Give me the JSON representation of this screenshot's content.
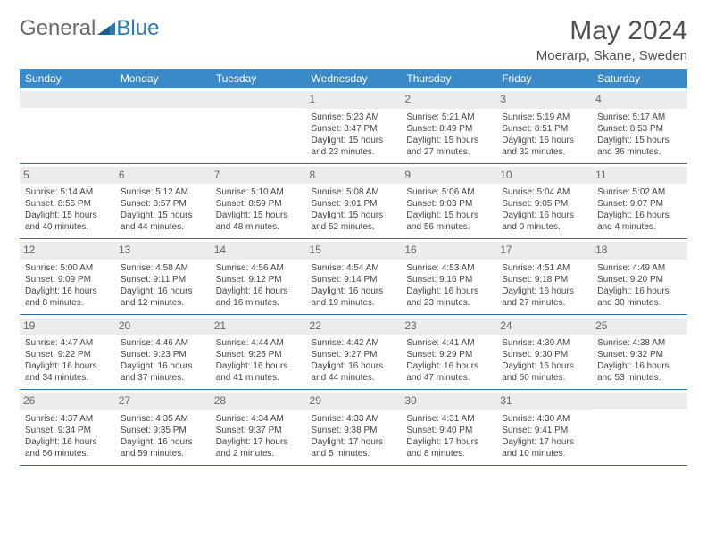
{
  "brand": {
    "part1": "General",
    "part2": "Blue"
  },
  "title": "May 2024",
  "location": "Moerarp, Skane, Sweden",
  "colors": {
    "header_bg": "#3a8ac9",
    "header_text": "#ffffff",
    "border": "#2a6ca8",
    "daynum_bg": "#ececec",
    "logo_gray": "#6b6b6b",
    "logo_blue": "#2a7ab8"
  },
  "weekdays": [
    "Sunday",
    "Monday",
    "Tuesday",
    "Wednesday",
    "Thursday",
    "Friday",
    "Saturday"
  ],
  "weeks": [
    [
      null,
      null,
      null,
      {
        "n": "1",
        "sr": "5:23 AM",
        "ss": "8:47 PM",
        "dl1": "Daylight: 15 hours",
        "dl2": "and 23 minutes."
      },
      {
        "n": "2",
        "sr": "5:21 AM",
        "ss": "8:49 PM",
        "dl1": "Daylight: 15 hours",
        "dl2": "and 27 minutes."
      },
      {
        "n": "3",
        "sr": "5:19 AM",
        "ss": "8:51 PM",
        "dl1": "Daylight: 15 hours",
        "dl2": "and 32 minutes."
      },
      {
        "n": "4",
        "sr": "5:17 AM",
        "ss": "8:53 PM",
        "dl1": "Daylight: 15 hours",
        "dl2": "and 36 minutes."
      }
    ],
    [
      {
        "n": "5",
        "sr": "5:14 AM",
        "ss": "8:55 PM",
        "dl1": "Daylight: 15 hours",
        "dl2": "and 40 minutes."
      },
      {
        "n": "6",
        "sr": "5:12 AM",
        "ss": "8:57 PM",
        "dl1": "Daylight: 15 hours",
        "dl2": "and 44 minutes."
      },
      {
        "n": "7",
        "sr": "5:10 AM",
        "ss": "8:59 PM",
        "dl1": "Daylight: 15 hours",
        "dl2": "and 48 minutes."
      },
      {
        "n": "8",
        "sr": "5:08 AM",
        "ss": "9:01 PM",
        "dl1": "Daylight: 15 hours",
        "dl2": "and 52 minutes."
      },
      {
        "n": "9",
        "sr": "5:06 AM",
        "ss": "9:03 PM",
        "dl1": "Daylight: 15 hours",
        "dl2": "and 56 minutes."
      },
      {
        "n": "10",
        "sr": "5:04 AM",
        "ss": "9:05 PM",
        "dl1": "Daylight: 16 hours",
        "dl2": "and 0 minutes."
      },
      {
        "n": "11",
        "sr": "5:02 AM",
        "ss": "9:07 PM",
        "dl1": "Daylight: 16 hours",
        "dl2": "and 4 minutes."
      }
    ],
    [
      {
        "n": "12",
        "sr": "5:00 AM",
        "ss": "9:09 PM",
        "dl1": "Daylight: 16 hours",
        "dl2": "and 8 minutes."
      },
      {
        "n": "13",
        "sr": "4:58 AM",
        "ss": "9:11 PM",
        "dl1": "Daylight: 16 hours",
        "dl2": "and 12 minutes."
      },
      {
        "n": "14",
        "sr": "4:56 AM",
        "ss": "9:12 PM",
        "dl1": "Daylight: 16 hours",
        "dl2": "and 16 minutes."
      },
      {
        "n": "15",
        "sr": "4:54 AM",
        "ss": "9:14 PM",
        "dl1": "Daylight: 16 hours",
        "dl2": "and 19 minutes."
      },
      {
        "n": "16",
        "sr": "4:53 AM",
        "ss": "9:16 PM",
        "dl1": "Daylight: 16 hours",
        "dl2": "and 23 minutes."
      },
      {
        "n": "17",
        "sr": "4:51 AM",
        "ss": "9:18 PM",
        "dl1": "Daylight: 16 hours",
        "dl2": "and 27 minutes."
      },
      {
        "n": "18",
        "sr": "4:49 AM",
        "ss": "9:20 PM",
        "dl1": "Daylight: 16 hours",
        "dl2": "and 30 minutes."
      }
    ],
    [
      {
        "n": "19",
        "sr": "4:47 AM",
        "ss": "9:22 PM",
        "dl1": "Daylight: 16 hours",
        "dl2": "and 34 minutes."
      },
      {
        "n": "20",
        "sr": "4:46 AM",
        "ss": "9:23 PM",
        "dl1": "Daylight: 16 hours",
        "dl2": "and 37 minutes."
      },
      {
        "n": "21",
        "sr": "4:44 AM",
        "ss": "9:25 PM",
        "dl1": "Daylight: 16 hours",
        "dl2": "and 41 minutes."
      },
      {
        "n": "22",
        "sr": "4:42 AM",
        "ss": "9:27 PM",
        "dl1": "Daylight: 16 hours",
        "dl2": "and 44 minutes."
      },
      {
        "n": "23",
        "sr": "4:41 AM",
        "ss": "9:29 PM",
        "dl1": "Daylight: 16 hours",
        "dl2": "and 47 minutes."
      },
      {
        "n": "24",
        "sr": "4:39 AM",
        "ss": "9:30 PM",
        "dl1": "Daylight: 16 hours",
        "dl2": "and 50 minutes."
      },
      {
        "n": "25",
        "sr": "4:38 AM",
        "ss": "9:32 PM",
        "dl1": "Daylight: 16 hours",
        "dl2": "and 53 minutes."
      }
    ],
    [
      {
        "n": "26",
        "sr": "4:37 AM",
        "ss": "9:34 PM",
        "dl1": "Daylight: 16 hours",
        "dl2": "and 56 minutes."
      },
      {
        "n": "27",
        "sr": "4:35 AM",
        "ss": "9:35 PM",
        "dl1": "Daylight: 16 hours",
        "dl2": "and 59 minutes."
      },
      {
        "n": "28",
        "sr": "4:34 AM",
        "ss": "9:37 PM",
        "dl1": "Daylight: 17 hours",
        "dl2": "and 2 minutes."
      },
      {
        "n": "29",
        "sr": "4:33 AM",
        "ss": "9:38 PM",
        "dl1": "Daylight: 17 hours",
        "dl2": "and 5 minutes."
      },
      {
        "n": "30",
        "sr": "4:31 AM",
        "ss": "9:40 PM",
        "dl1": "Daylight: 17 hours",
        "dl2": "and 8 minutes."
      },
      {
        "n": "31",
        "sr": "4:30 AM",
        "ss": "9:41 PM",
        "dl1": "Daylight: 17 hours",
        "dl2": "and 10 minutes."
      },
      null
    ]
  ]
}
